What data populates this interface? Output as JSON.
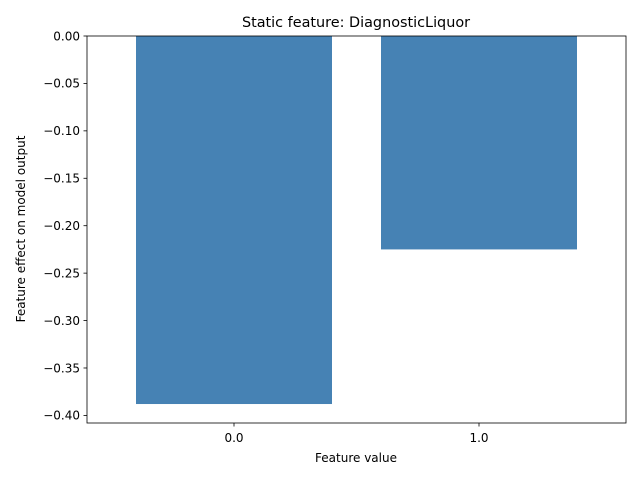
{
  "chart_data": {
    "type": "bar",
    "title": "Static feature: DiagnosticLiquor",
    "xlabel": "Feature value",
    "ylabel": "Feature effect on model output",
    "categories": [
      "0.0",
      "1.0"
    ],
    "values": [
      -0.388,
      -0.225
    ],
    "ylim": [
      -0.408,
      0.0
    ],
    "yticks": [
      "0.00",
      "−0.05",
      "−0.10",
      "−0.15",
      "−0.20",
      "−0.25",
      "−0.30",
      "−0.35",
      "−0.40"
    ],
    "ytick_values": [
      0.0,
      -0.05,
      -0.1,
      -0.15,
      -0.2,
      -0.25,
      -0.3,
      -0.35,
      -0.4
    ],
    "bar_color": "#4682b4",
    "grid": false,
    "legend": "none"
  }
}
